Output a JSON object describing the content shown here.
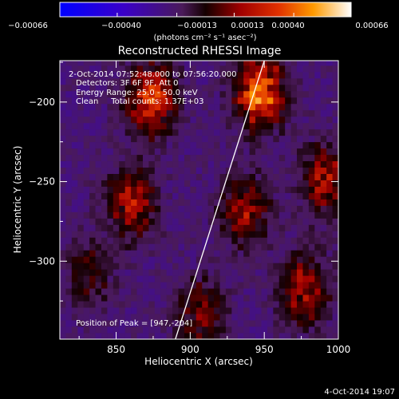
{
  "chart_data": {
    "type": "heatmap",
    "title": "Reconstructed RHESSI Image",
    "xlabel": "Heliocentric X (arcsec)",
    "ylabel": "Heliocentric Y (arcsec)",
    "xlim": [
      812,
      1000
    ],
    "ylim": [
      -349,
      -174
    ],
    "x_ticks": [
      850,
      900,
      950,
      1000
    ],
    "y_ticks": [
      -200,
      -250,
      -300
    ],
    "colorbar": {
      "min": -0.00066,
      "max": 0.00066,
      "tick_labels": [
        "-0.00066",
        "-0.00040",
        "-0.00013",
        "0.00013",
        "0.00040",
        "0.00066"
      ],
      "unit_label": "(photons cm⁻² s⁻¹ asec⁻²)"
    },
    "annotations": [
      " 2-Oct-2014 07:52:48.000 to 07:56:20.000",
      "Detectors: 3F 6F 9F, Att 0",
      "Energy Range: 25.0 - 50.0 keV",
      "Clean     Total counts: 1.37E+03"
    ],
    "peak_label": "Position of Peak = [947,-204]",
    "limb_line": {
      "x": [
        890,
        950
      ],
      "y": [
        -349,
        -174
      ]
    },
    "bright_regions": [
      {
        "x": 872,
        "y": -200,
        "value": 0.00055
      },
      {
        "x": 945,
        "y": -195,
        "value": 0.00066
      },
      {
        "x": 858,
        "y": -265,
        "value": 0.0004
      },
      {
        "x": 935,
        "y": -270,
        "value": 0.00035
      },
      {
        "x": 990,
        "y": -250,
        "value": 0.0004
      },
      {
        "x": 975,
        "y": -320,
        "value": 0.00038
      },
      {
        "x": 905,
        "y": -335,
        "value": 0.0003
      },
      {
        "x": 830,
        "y": -310,
        "value": 0.00022
      }
    ]
  },
  "footer": {
    "timestamp": "4-Oct-2014 19:07"
  }
}
